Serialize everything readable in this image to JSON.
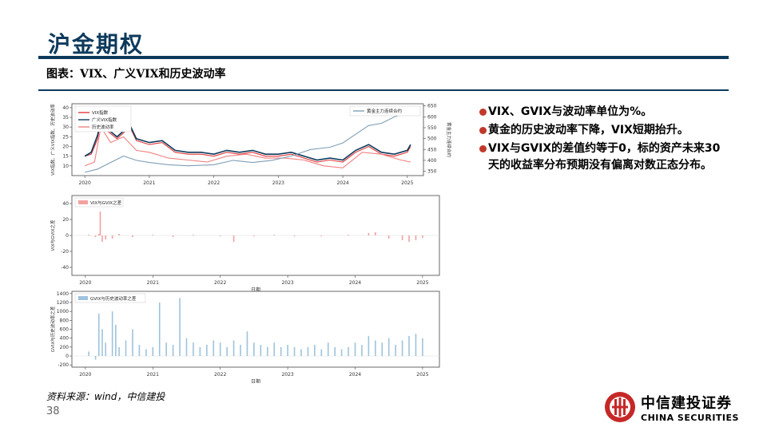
{
  "header": {
    "title": "沪金期权",
    "subtitle": "图表：VIX、广义VIX和历史波动率"
  },
  "bullets": [
    "VIX、GVIX与波动率单位为%。",
    "黄金的历史波动率下降，VIX短期抬升。",
    "VIX与GVIX的差值约等于0，标的资产未来30天的收益率分布预期没有偏离对数正态分布。"
  ],
  "footer": {
    "source": "资料来源：wind，中信建投",
    "page": "38",
    "logo_cn": "中信建投证券",
    "logo_en": "CHINA SECURITIES"
  },
  "colors": {
    "brand": "#0d3a5c",
    "bullet": "#c0392b",
    "vix": "#e0393a",
    "gvix": "#0d3a5c",
    "hv": "#f08080",
    "gold": "#7f9fb5",
    "diff1": "#f4a0a0",
    "diff2": "#9ec3dc"
  },
  "chart_data": [
    {
      "type": "line",
      "x_ticks": [
        "2020",
        "2021",
        "2022",
        "2023",
        "2024",
        "2025"
      ],
      "ylabel": "VIX指数、广义VIX指数、历史波动率",
      "y2label": "黄金主力连续合约",
      "ylim": [
        5,
        42
      ],
      "yticks": [
        "10",
        "15",
        "20",
        "25",
        "30",
        "35",
        "40"
      ],
      "y2lim": [
        330,
        660
      ],
      "y2ticks": [
        "350",
        "400",
        "450",
        "500",
        "550",
        "600",
        "650"
      ],
      "legend_left": [
        "VIX指数",
        "广义VIX指数",
        "历史波动率"
      ],
      "legend_right": [
        "黄金主力连续合约"
      ],
      "series": [
        {
          "name": "VIX指数",
          "x": [
            2020.0,
            2020.1,
            2020.2,
            2020.25,
            2020.35,
            2020.5,
            2020.6,
            2020.7,
            2020.8,
            2021.0,
            2021.2,
            2021.4,
            2021.6,
            2021.8,
            2022.0,
            2022.2,
            2022.4,
            2022.6,
            2022.8,
            2023.0,
            2023.2,
            2023.4,
            2023.6,
            2023.8,
            2024.0,
            2024.2,
            2024.4,
            2024.6,
            2024.8,
            2025.0,
            2025.05
          ],
          "values": [
            15,
            16,
            24,
            34,
            28,
            24,
            27,
            30,
            23,
            21,
            22,
            17,
            16,
            16,
            15,
            17,
            16,
            17,
            15,
            15,
            16,
            14,
            12,
            13,
            12,
            17,
            20,
            16,
            15,
            17,
            20
          ]
        },
        {
          "name": "广义VIX指数",
          "x": [
            2020.0,
            2020.1,
            2020.2,
            2020.25,
            2020.35,
            2020.5,
            2020.6,
            2020.7,
            2020.8,
            2021.0,
            2021.2,
            2021.4,
            2021.6,
            2021.8,
            2022.0,
            2022.2,
            2022.4,
            2022.6,
            2022.8,
            2023.0,
            2023.2,
            2023.4,
            2023.6,
            2023.8,
            2024.0,
            2024.2,
            2024.4,
            2024.6,
            2024.8,
            2025.0,
            2025.05
          ],
          "values": [
            15,
            17,
            26,
            35,
            29,
            25,
            28,
            31,
            24,
            22,
            23,
            18,
            17,
            17,
            16,
            18,
            17,
            18,
            16,
            16,
            17,
            15,
            13,
            14,
            13,
            18,
            21,
            17,
            16,
            18,
            21
          ]
        },
        {
          "name": "历史波动率",
          "x": [
            2020.0,
            2020.15,
            2020.25,
            2020.4,
            2020.6,
            2020.8,
            2021.0,
            2021.3,
            2021.6,
            2021.9,
            2022.2,
            2022.5,
            2022.8,
            2023.1,
            2023.4,
            2023.7,
            2024.0,
            2024.3,
            2024.6,
            2024.9,
            2025.05
          ],
          "values": [
            10,
            12,
            30,
            22,
            25,
            18,
            17,
            14,
            13,
            12,
            15,
            16,
            14,
            14,
            13,
            10,
            9,
            17,
            16,
            13,
            12
          ]
        },
        {
          "name": "黄金主力连续合约",
          "axis": "right",
          "x": [
            2020.0,
            2020.2,
            2020.4,
            2020.6,
            2020.8,
            2021.0,
            2021.3,
            2021.6,
            2022.0,
            2022.3,
            2022.6,
            2022.9,
            2023.2,
            2023.5,
            2023.8,
            2024.0,
            2024.2,
            2024.4,
            2024.6,
            2024.8,
            2025.0,
            2025.05
          ],
          "values": [
            345,
            360,
            390,
            420,
            400,
            390,
            380,
            375,
            380,
            400,
            390,
            400,
            420,
            450,
            460,
            480,
            520,
            560,
            570,
            600,
            620,
            630
          ]
        }
      ]
    },
    {
      "type": "bar",
      "x_ticks": [
        "2020",
        "2021",
        "2022",
        "2023",
        "2024",
        "2025"
      ],
      "xlabel": "日期",
      "ylabel": "VIX与GVIX之差",
      "ylim": [
        -50,
        50
      ],
      "yticks": [
        "-40",
        "-20",
        "0",
        "20",
        "40"
      ],
      "legend": [
        "VIX与GVIX之差"
      ],
      "series": [
        {
          "name": "VIX与GVIX之差",
          "x": [
            2020.05,
            2020.15,
            2020.2,
            2020.22,
            2020.25,
            2020.3,
            2020.4,
            2020.5,
            2020.7,
            2021.0,
            2021.3,
            2021.6,
            2022.0,
            2022.2,
            2022.5,
            2022.8,
            2023.1,
            2023.5,
            2023.9,
            2024.2,
            2024.3,
            2024.5,
            2024.7,
            2024.8,
            2024.9,
            2025.0
          ],
          "values": [
            1,
            -2,
            2,
            30,
            -8,
            -5,
            -4,
            2,
            -2,
            1,
            -2,
            1,
            -1,
            -8,
            -1,
            1,
            -1,
            -1,
            1,
            3,
            4,
            -4,
            -6,
            -8,
            -6,
            -3
          ]
        }
      ]
    },
    {
      "type": "bar",
      "x_ticks": [
        "2020",
        "2021",
        "2022",
        "2023",
        "2024",
        "2025"
      ],
      "xlabel": "日期",
      "ylabel": "GVIX与历史波动率之差",
      "ylim": [
        -250,
        1450
      ],
      "yticks": [
        "-200",
        "0",
        "200",
        "400",
        "600",
        "800",
        "1000",
        "1200",
        "1400"
      ],
      "legend": [
        "GVIX与历史波动率之差"
      ],
      "series": [
        {
          "name": "GVIX与历史波动率之差",
          "x": [
            2020.05,
            2020.15,
            2020.2,
            2020.25,
            2020.3,
            2020.4,
            2020.45,
            2020.5,
            2020.6,
            2020.7,
            2020.8,
            2020.9,
            2021.0,
            2021.1,
            2021.2,
            2021.3,
            2021.4,
            2021.5,
            2021.6,
            2021.7,
            2021.8,
            2021.9,
            2022.0,
            2022.1,
            2022.2,
            2022.3,
            2022.4,
            2022.5,
            2022.6,
            2022.7,
            2022.8,
            2022.9,
            2023.0,
            2023.1,
            2023.2,
            2023.3,
            2023.4,
            2023.5,
            2023.6,
            2023.7,
            2023.8,
            2023.9,
            2024.0,
            2024.1,
            2024.2,
            2024.3,
            2024.4,
            2024.5,
            2024.6,
            2024.7,
            2024.8,
            2024.9,
            2025.0
          ],
          "values": [
            100,
            -80,
            950,
            600,
            300,
            1000,
            700,
            200,
            350,
            600,
            250,
            150,
            200,
            1200,
            300,
            250,
            1300,
            400,
            300,
            200,
            250,
            350,
            300,
            200,
            350,
            250,
            550,
            300,
            250,
            200,
            300,
            200,
            250,
            200,
            150,
            200,
            250,
            150,
            300,
            200,
            150,
            200,
            300,
            250,
            450,
            350,
            300,
            400,
            250,
            350,
            450,
            500,
            400
          ]
        }
      ]
    }
  ]
}
